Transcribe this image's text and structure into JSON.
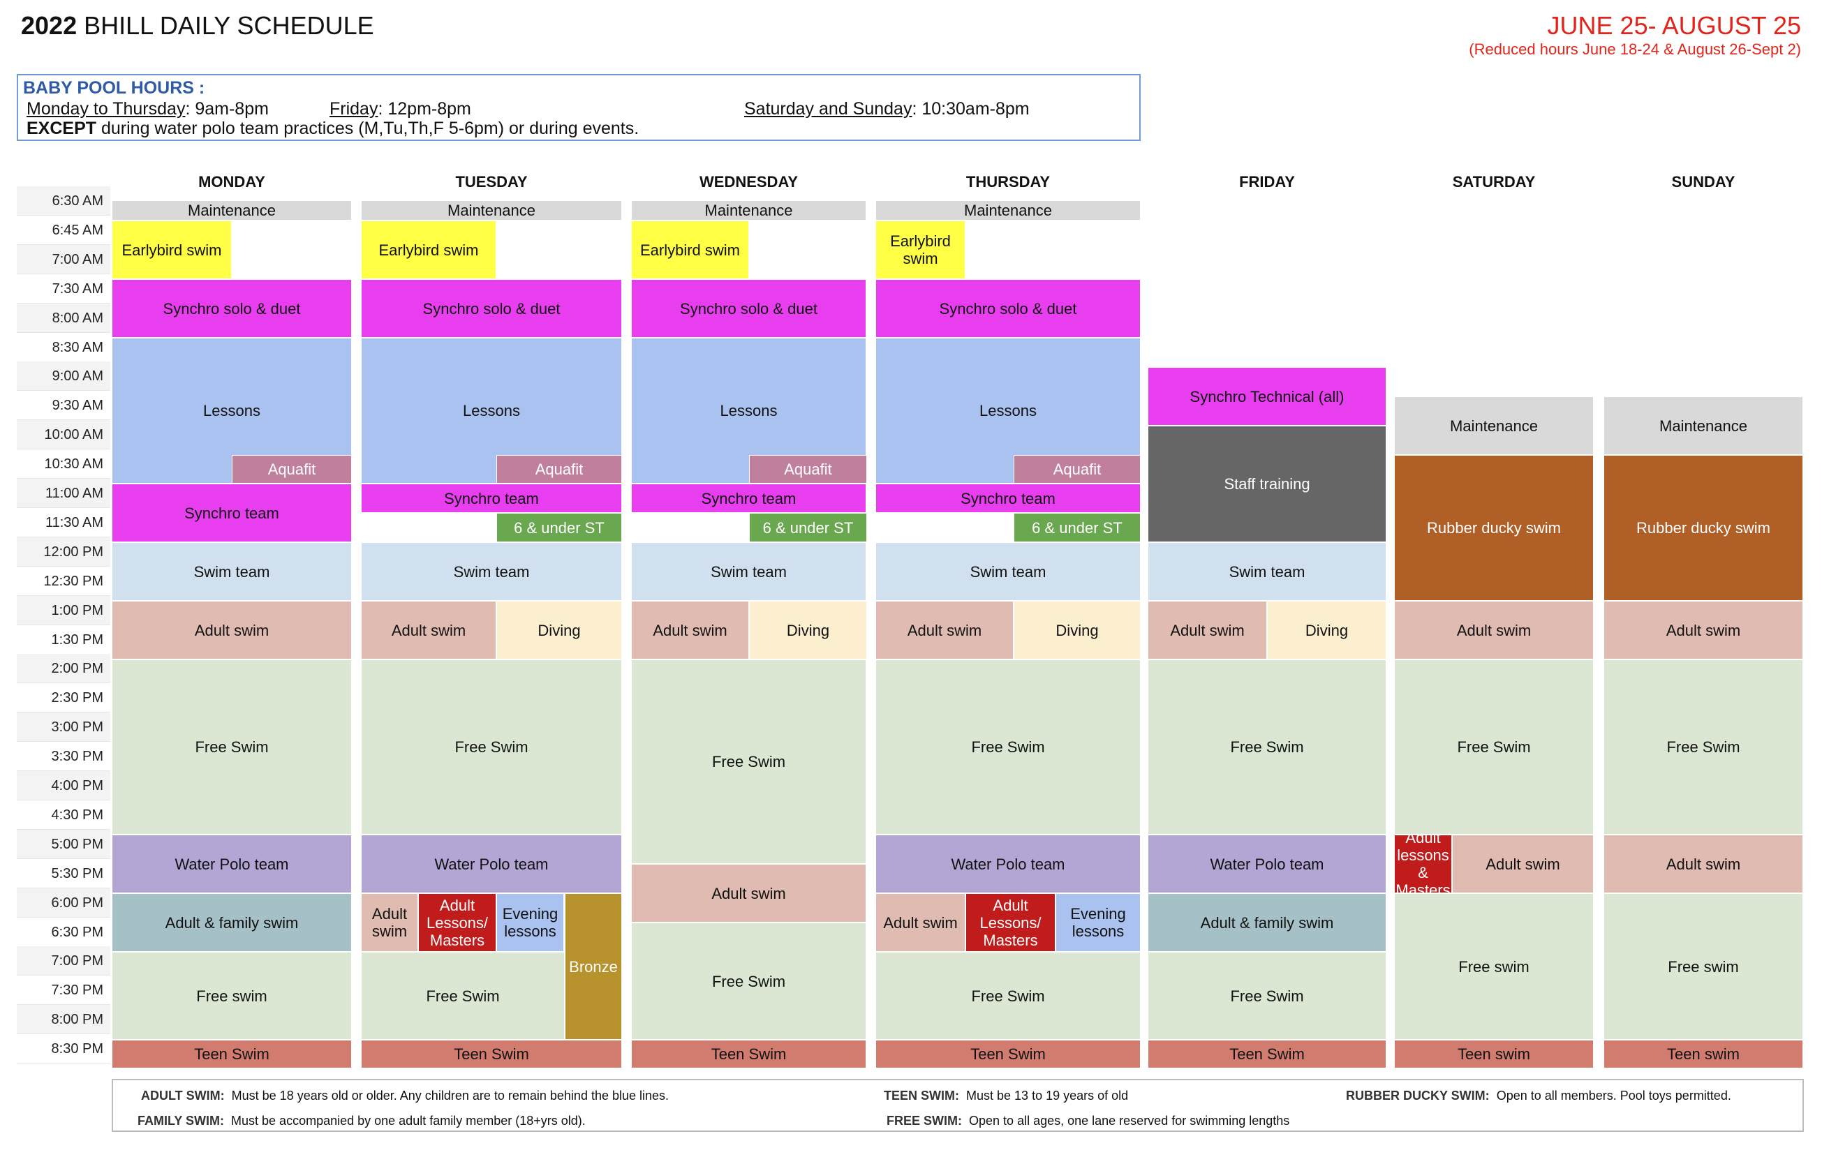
{
  "header": {
    "title_year": "2022",
    "title_rest": "BHILL DAILY SCHEDULE",
    "dates": "JUNE 25- AUGUST 25",
    "dates_note": "(Reduced hours June 18-24 & August 26-Sept 2)"
  },
  "baby_pool": {
    "title": "BABY POOL HOURS :",
    "weekday_label": "Monday to Thursday",
    "weekday_hours": ":  9am-8pm",
    "friday_label": "Friday",
    "friday_hours": ": 12pm-8pm",
    "weekend_label": "Saturday and Sunday",
    "weekend_hours": ": 10:30am-8pm",
    "except_bold": "EXCEPT",
    "except_text": " during water polo team practices (M,Tu,Th,F 5-6pm) or during events."
  },
  "days": [
    "MONDAY",
    "TUESDAY",
    "WEDNESDAY",
    "THURSDAY",
    "FRIDAY",
    "SATURDAY",
    "SUNDAY"
  ],
  "times": [
    "6:30 AM",
    "6:45 AM",
    "7:00 AM",
    "7:30 AM",
    "8:00 AM",
    "8:30 AM",
    "9:00 AM",
    "9:30 AM",
    "10:00 AM",
    "10:30 AM",
    "11:00 AM",
    "11:30 AM",
    "12:00 PM",
    "12:30 PM",
    "1:00 PM",
    "1:30 PM",
    "2:00 PM",
    "2:30 PM",
    "3:00 PM",
    "3:30 PM",
    "4:00 PM",
    "4:30 PM",
    "5:00 PM",
    "5:30 PM",
    "6:00 PM",
    "6:30 PM",
    "7:00 PM",
    "7:30 PM",
    "8:00 PM",
    "8:30 PM"
  ],
  "colors": {
    "maintenance": "#d9d9d9",
    "earlybird": "#ffff45",
    "synchro": "#e83ef0",
    "lessons": "#a9c2ef",
    "aquafit": "#c07f9c",
    "under6": "#6aa84f",
    "swimteam": "#d1e0ee",
    "adultswim": "#e0bbb1",
    "diving": "#fbefcf",
    "freeswim": "#dbe7d3",
    "waterpolo": "#b3a6d5",
    "family": "#a6c0c7",
    "adultlessons": "#c01c1c",
    "evening": "#a9c2ef",
    "bronze": "#b8922d",
    "teen": "#d27c6f",
    "stafftraining": "#666666",
    "rubberducky": "#b05f27"
  },
  "schedule": {
    "monday": [
      {
        "label": "Maintenance",
        "color": "maintenance"
      },
      {
        "label": "Earlybird swim",
        "color": "earlybird"
      },
      {
        "label": "Synchro solo & duet",
        "color": "synchro"
      },
      {
        "label": "Lessons",
        "color": "lessons"
      },
      {
        "label": "Aquafit",
        "color": "aquafit"
      },
      {
        "label": "Synchro team",
        "color": "synchro"
      },
      {
        "label": "Swim team",
        "color": "swimteam"
      },
      {
        "label": "Adult swim",
        "color": "adultswim"
      },
      {
        "label": "Free Swim",
        "color": "freeswim"
      },
      {
        "label": "Water Polo team",
        "color": "waterpolo"
      },
      {
        "label": "Adult & family swim",
        "color": "family"
      },
      {
        "label": "Free swim",
        "color": "freeswim"
      },
      {
        "label": "Teen Swim",
        "color": "teen"
      }
    ],
    "tuesday": [
      {
        "label": "Maintenance",
        "color": "maintenance"
      },
      {
        "label": "Earlybird swim",
        "color": "earlybird"
      },
      {
        "label": "Synchro solo & duet",
        "color": "synchro"
      },
      {
        "label": "Lessons",
        "color": "lessons"
      },
      {
        "label": "Aquafit",
        "color": "aquafit"
      },
      {
        "label": "Synchro team",
        "color": "synchro"
      },
      {
        "label": "6 & under ST",
        "color": "under6"
      },
      {
        "label": "Swim team",
        "color": "swimteam"
      },
      {
        "label": "Adult swim",
        "color": "adultswim"
      },
      {
        "label": "Diving",
        "color": "diving"
      },
      {
        "label": "Free Swim",
        "color": "freeswim"
      },
      {
        "label": "Water Polo team",
        "color": "waterpolo"
      },
      {
        "label": "Adult swim",
        "color": "adultswim"
      },
      {
        "label": "Adult Lessons/ Masters",
        "color": "adultlessons"
      },
      {
        "label": "Evening lessons",
        "color": "evening"
      },
      {
        "label": "Bronze",
        "color": "bronze"
      },
      {
        "label": "Free Swim",
        "color": "freeswim"
      },
      {
        "label": "Teen Swim",
        "color": "teen"
      }
    ],
    "wednesday": [
      {
        "label": "Maintenance",
        "color": "maintenance"
      },
      {
        "label": "Earlybird swim",
        "color": "earlybird"
      },
      {
        "label": "Synchro solo & duet",
        "color": "synchro"
      },
      {
        "label": "Lessons",
        "color": "lessons"
      },
      {
        "label": "Aquafit",
        "color": "aquafit"
      },
      {
        "label": "Synchro team",
        "color": "synchro"
      },
      {
        "label": "6 & under ST",
        "color": "under6"
      },
      {
        "label": "Swim team",
        "color": "swimteam"
      },
      {
        "label": "Adult swim",
        "color": "adultswim"
      },
      {
        "label": "Diving",
        "color": "diving"
      },
      {
        "label": "Free Swim",
        "color": "freeswim"
      },
      {
        "label": "Adult swim",
        "color": "adultswim"
      },
      {
        "label": "Free Swim",
        "color": "freeswim"
      },
      {
        "label": "Teen Swim",
        "color": "teen"
      }
    ],
    "thursday": [
      {
        "label": "Maintenance",
        "color": "maintenance"
      },
      {
        "label": "Earlybird swim",
        "color": "earlybird"
      },
      {
        "label": "Synchro solo & duet",
        "color": "synchro"
      },
      {
        "label": "Lessons",
        "color": "lessons"
      },
      {
        "label": "Aquafit",
        "color": "aquafit"
      },
      {
        "label": "Synchro team",
        "color": "synchro"
      },
      {
        "label": "6 & under ST",
        "color": "under6"
      },
      {
        "label": "Swim team",
        "color": "swimteam"
      },
      {
        "label": "Adult swim",
        "color": "adultswim"
      },
      {
        "label": "Diving",
        "color": "diving"
      },
      {
        "label": "Free Swim",
        "color": "freeswim"
      },
      {
        "label": "Water Polo team",
        "color": "waterpolo"
      },
      {
        "label": "Adult swim",
        "color": "adultswim"
      },
      {
        "label": "Adult Lessons/ Masters",
        "color": "adultlessons"
      },
      {
        "label": "Evening lessons",
        "color": "evening"
      },
      {
        "label": "Free Swim",
        "color": "freeswim"
      },
      {
        "label": "Teen Swim",
        "color": "teen"
      }
    ],
    "friday": [
      {
        "label": "Synchro Technical (all)",
        "color": "synchro"
      },
      {
        "label": "Staff training",
        "color": "stafftraining"
      },
      {
        "label": "Swim team",
        "color": "swimteam"
      },
      {
        "label": "Adult swim",
        "color": "adultswim"
      },
      {
        "label": "Diving",
        "color": "diving"
      },
      {
        "label": "Free Swim",
        "color": "freeswim"
      },
      {
        "label": "Water Polo team",
        "color": "waterpolo"
      },
      {
        "label": "Adult & family swim",
        "color": "family"
      },
      {
        "label": "Free Swim",
        "color": "freeswim"
      },
      {
        "label": "Teen Swim",
        "color": "teen"
      }
    ],
    "saturday": [
      {
        "label": "Maintenance",
        "color": "maintenance"
      },
      {
        "label": "Rubber ducky swim",
        "color": "rubberducky"
      },
      {
        "label": "Adult swim",
        "color": "adultswim"
      },
      {
        "label": "Free Swim",
        "color": "freeswim"
      },
      {
        "label": "Adult lessons & Masters",
        "color": "adultlessons"
      },
      {
        "label": "Adult swim",
        "color": "adultswim"
      },
      {
        "label": "Free swim",
        "color": "freeswim"
      },
      {
        "label": "Teen swim",
        "color": "teen"
      }
    ],
    "sunday": [
      {
        "label": "Maintenance",
        "color": "maintenance"
      },
      {
        "label": "Rubber ducky swim",
        "color": "rubberducky"
      },
      {
        "label": "Adult swim",
        "color": "adultswim"
      },
      {
        "label": "Free Swim",
        "color": "freeswim"
      },
      {
        "label": "Adult swim",
        "color": "adultswim"
      },
      {
        "label": "Free swim",
        "color": "freeswim"
      },
      {
        "label": "Teen swim",
        "color": "teen"
      }
    ]
  },
  "footer": {
    "adult_swim_key": "ADULT SWIM:",
    "adult_swim_text": "Must be 18 years old or older. Any children are to remain behind the blue lines.",
    "family_swim_key": "FAMILY SWIM:",
    "family_swim_text": "Must be accompanied by one adult family member (18+yrs old).",
    "teen_swim_key": "TEEN SWIM:",
    "teen_swim_text": "Must be 13 to 19 years of old",
    "free_swim_key": "FREE SWIM:",
    "free_swim_text": "Open to all ages, one lane reserved for swimming lengths",
    "rubber_ducky_key": "RUBBER DUCKY SWIM:",
    "rubber_ducky_text": "Open to all members. Pool toys permitted."
  }
}
